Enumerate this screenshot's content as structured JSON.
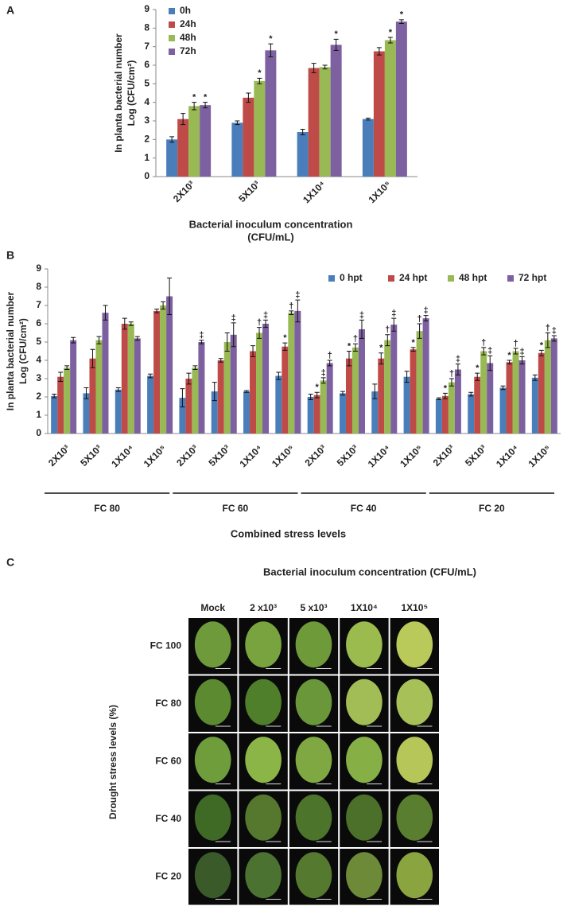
{
  "panels": [
    "A",
    "B",
    "C"
  ],
  "chart_data": [
    {
      "type": "bar",
      "y_label": [
        "In planta bacterial number",
        "Log (CFU/cm²)"
      ],
      "x_label": [
        "Bacterial inoculum concentration",
        "(CFU/mL)"
      ],
      "categories": [
        "2X10³",
        "5X10³",
        "1X10⁴",
        "1X10⁵"
      ],
      "ylim": [
        0,
        9
      ],
      "yticks": [
        0,
        1,
        2,
        3,
        4,
        5,
        6,
        7,
        8,
        9
      ],
      "legend": "top-left",
      "series": [
        {
          "name": "0h",
          "color": "#4a7ebb",
          "values": [
            2.0,
            2.9,
            2.4,
            3.1
          ],
          "errors": [
            0.15,
            0.1,
            0.15,
            0.05
          ],
          "markers": [
            null,
            null,
            null,
            null
          ]
        },
        {
          "name": "24h",
          "color": "#be4b48",
          "values": [
            3.1,
            4.25,
            5.85,
            6.75
          ],
          "errors": [
            0.3,
            0.25,
            0.25,
            0.2
          ],
          "markers": [
            null,
            null,
            null,
            null
          ]
        },
        {
          "name": "48h",
          "color": "#98b954",
          "values": [
            3.8,
            5.15,
            5.9,
            7.35
          ],
          "errors": [
            0.2,
            0.15,
            0.1,
            0.15
          ],
          "markers": [
            "*",
            "*",
            null,
            "*"
          ]
        },
        {
          "name": "72h",
          "color": "#7d60a0",
          "values": [
            3.85,
            6.8,
            7.1,
            8.35
          ],
          "errors": [
            0.15,
            0.35,
            0.3,
            0.1
          ],
          "markers": [
            "*",
            "*",
            "*",
            "*"
          ]
        }
      ]
    },
    {
      "type": "bar",
      "y_label": [
        "In planta bacterial number",
        "Log (CFU/cm²)"
      ],
      "x_label": "Combined stress  levels",
      "categories": [
        "2X10³",
        "5X10³",
        "1X10⁴",
        "1X10⁵",
        "2X10³",
        "5X10³",
        "1X10⁴",
        "1X10⁵",
        "2X10³",
        "5X10³",
        "1X10⁴",
        "1X10⁵",
        "2X10³",
        "5X10³",
        "1X10⁴",
        "1X10⁵"
      ],
      "groups": [
        "FC 80",
        "FC 60",
        "FC 40",
        "FC 20"
      ],
      "ylim": [
        0,
        9
      ],
      "yticks": [
        0,
        1,
        2,
        3,
        4,
        5,
        6,
        7,
        8,
        9
      ],
      "legend": "top-right",
      "series": [
        {
          "name": "0 hpt",
          "color": "#4a7ebb",
          "values": [
            2.05,
            2.2,
            2.4,
            3.15,
            1.95,
            2.3,
            2.3,
            3.15,
            2.0,
            2.2,
            2.3,
            3.1,
            1.9,
            2.15,
            2.5,
            3.05
          ],
          "errors": [
            0.1,
            0.3,
            0.1,
            0.1,
            0.5,
            0.5,
            0.05,
            0.2,
            0.15,
            0.1,
            0.4,
            0.3,
            0.05,
            0.1,
            0.1,
            0.15
          ],
          "markers": [
            null,
            null,
            null,
            null,
            null,
            null,
            null,
            null,
            null,
            null,
            null,
            null,
            null,
            null,
            null,
            null
          ]
        },
        {
          "name": "24 hpt",
          "color": "#be4b48",
          "values": [
            3.1,
            4.1,
            6.0,
            6.7,
            3.0,
            4.0,
            4.5,
            4.75,
            2.1,
            4.1,
            4.1,
            4.6,
            2.05,
            3.1,
            3.9,
            4.4
          ],
          "errors": [
            0.25,
            0.5,
            0.3,
            0.1,
            0.3,
            0.1,
            0.3,
            0.2,
            0.15,
            0.4,
            0.3,
            0.1,
            0.15,
            0.2,
            0.1,
            0.15
          ],
          "markers": [
            null,
            null,
            null,
            null,
            null,
            null,
            null,
            "*",
            "*",
            "*",
            "*",
            "*",
            "*",
            "*",
            "*",
            "*"
          ]
        },
        {
          "name": "48 hpt",
          "color": "#98b954",
          "values": [
            3.6,
            5.1,
            6.0,
            7.0,
            3.6,
            5.0,
            5.5,
            6.6,
            2.9,
            4.7,
            5.1,
            5.6,
            2.8,
            4.5,
            4.5,
            5.1
          ],
          "errors": [
            0.1,
            0.2,
            0.1,
            0.2,
            0.1,
            0.5,
            0.3,
            0.1,
            0.15,
            0.2,
            0.3,
            0.4,
            0.2,
            0.2,
            0.15,
            0.4
          ],
          "markers": [
            null,
            null,
            null,
            null,
            null,
            null,
            "†",
            "†",
            "‡",
            "†",
            "†",
            "†",
            "†",
            "†",
            "†",
            "†"
          ]
        },
        {
          "name": "72 hpt",
          "color": "#7d60a0",
          "values": [
            5.1,
            6.6,
            5.2,
            7.5,
            5.0,
            5.4,
            6.0,
            6.7,
            3.85,
            5.7,
            5.95,
            6.3,
            3.5,
            3.85,
            4.0,
            5.2
          ],
          "errors": [
            0.15,
            0.4,
            0.1,
            1.0,
            0.1,
            0.65,
            0.2,
            0.6,
            0.15,
            0.5,
            0.35,
            0.15,
            0.3,
            0.4,
            0.2,
            0.15
          ],
          "markers": [
            null,
            null,
            null,
            null,
            "‡",
            "‡",
            "‡",
            "‡",
            "†",
            "‡",
            "‡",
            "‡",
            "‡",
            "‡",
            "‡",
            "‡"
          ]
        }
      ]
    }
  ],
  "photo_grid": {
    "title": "Bacterial inoculum concentration (CFU/mL)",
    "columns": [
      "Mock",
      "2 x10³",
      "5 x10³",
      "1X10⁴",
      "1X10⁵"
    ],
    "rows": [
      "FC 100",
      "FC 80",
      "FC 60",
      "FC 40",
      "FC 20"
    ],
    "y_label": "Drought stress levels (%)"
  }
}
